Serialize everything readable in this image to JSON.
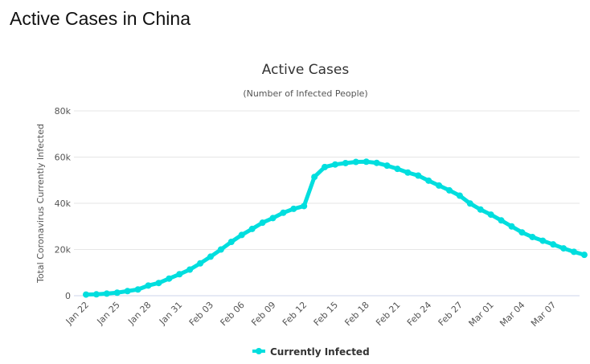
{
  "page": {
    "title": "Active Cases in China"
  },
  "chart_data": {
    "type": "line",
    "title": "Active Cases",
    "subtitle": "(Number of Infected People)",
    "ylabel": "Total Coronavirus Currently Infected",
    "xlabel": "",
    "ylim": [
      0,
      80000
    ],
    "yticks": [
      0,
      20000,
      40000,
      60000,
      80000
    ],
    "ytick_labels": [
      "0",
      "20k",
      "40k",
      "60k",
      "80k"
    ],
    "xtick_labels": [
      "Jan 22",
      "Jan 25",
      "Jan 28",
      "Jan 31",
      "Feb 03",
      "Feb 06",
      "Feb 09",
      "Feb 12",
      "Feb 15",
      "Feb 18",
      "Feb 21",
      "Feb 24",
      "Feb 27",
      "Mar 01",
      "Mar 04",
      "Mar 07"
    ],
    "grid": true,
    "legend_position": "bottom",
    "color": "#00dede",
    "series": [
      {
        "name": "Currently Infected",
        "start_date": "Jan 22",
        "values": [
          500,
          600,
          900,
          1300,
          2000,
          2700,
          4400,
          5500,
          7400,
          9300,
          11300,
          14000,
          16900,
          20000,
          23300,
          26300,
          28900,
          31600,
          33600,
          35900,
          37600,
          38800,
          51400,
          55700,
          56800,
          57400,
          57900,
          58000,
          57500,
          56300,
          54900,
          53300,
          52000,
          49800,
          47700,
          45600,
          43300,
          39900,
          37300,
          35100,
          32600,
          30000,
          27400,
          25400,
          23800,
          22200,
          20500,
          19000,
          17700
        ]
      }
    ]
  }
}
